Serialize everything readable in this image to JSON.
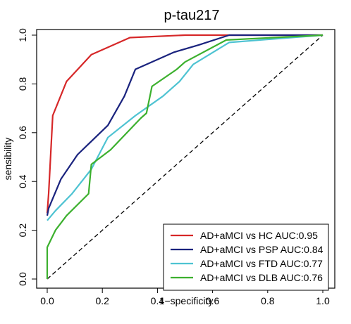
{
  "chart_data": {
    "type": "line",
    "title": "p-tau217",
    "xlabel": "1−specificity",
    "ylabel": "sensibility",
    "xlim": [
      0,
      1
    ],
    "ylim": [
      0,
      1
    ],
    "x_ticks": [
      "0.0",
      "0.2",
      "0.4",
      "0.6",
      "0.8",
      "1.0"
    ],
    "y_ticks": [
      "0.0",
      "0.2",
      "0.4",
      "0.6",
      "0.8",
      "1.0"
    ],
    "grid": false,
    "legend_position": "bottom-right",
    "diagonal_reference": true,
    "series": [
      {
        "name": "AD+aMCI vs HC AUC:0.95",
        "color": "#d62728",
        "points": [
          [
            0,
            0.27
          ],
          [
            0.005,
            0.35
          ],
          [
            0.02,
            0.67
          ],
          [
            0.07,
            0.81
          ],
          [
            0.16,
            0.92
          ],
          [
            0.3,
            0.99
          ],
          [
            0.5,
            1.0
          ],
          [
            1.0,
            1.0
          ]
        ]
      },
      {
        "name": "AD+aMCI vs PSP AUC:0.84",
        "color": "#1a237e",
        "points": [
          [
            0,
            0.26
          ],
          [
            0.005,
            0.29
          ],
          [
            0.05,
            0.41
          ],
          [
            0.11,
            0.51
          ],
          [
            0.22,
            0.63
          ],
          [
            0.28,
            0.75
          ],
          [
            0.32,
            0.86
          ],
          [
            0.46,
            0.93
          ],
          [
            0.55,
            0.96
          ],
          [
            0.66,
            1.0
          ],
          [
            1.0,
            1.0
          ]
        ]
      },
      {
        "name": "AD+aMCI vs FTD AUC:0.77",
        "color": "#4ec3d2",
        "points": [
          [
            0,
            0.24
          ],
          [
            0.03,
            0.28
          ],
          [
            0.09,
            0.35
          ],
          [
            0.16,
            0.45
          ],
          [
            0.22,
            0.58
          ],
          [
            0.32,
            0.67
          ],
          [
            0.42,
            0.75
          ],
          [
            0.48,
            0.81
          ],
          [
            0.53,
            0.88
          ],
          [
            0.66,
            0.97
          ],
          [
            1.0,
            1.0
          ]
        ]
      },
      {
        "name": "AD+aMCI vs DLB AUC:0.76",
        "color": "#3cb02e",
        "points": [
          [
            0,
            0.0
          ],
          [
            0,
            0.13
          ],
          [
            0.03,
            0.2
          ],
          [
            0.07,
            0.26
          ],
          [
            0.15,
            0.35
          ],
          [
            0.16,
            0.47
          ],
          [
            0.23,
            0.53
          ],
          [
            0.34,
            0.66
          ],
          [
            0.36,
            0.68
          ],
          [
            0.38,
            0.79
          ],
          [
            0.47,
            0.86
          ],
          [
            0.5,
            0.89
          ],
          [
            0.65,
            0.98
          ],
          [
            1.0,
            1.0
          ]
        ]
      }
    ]
  }
}
